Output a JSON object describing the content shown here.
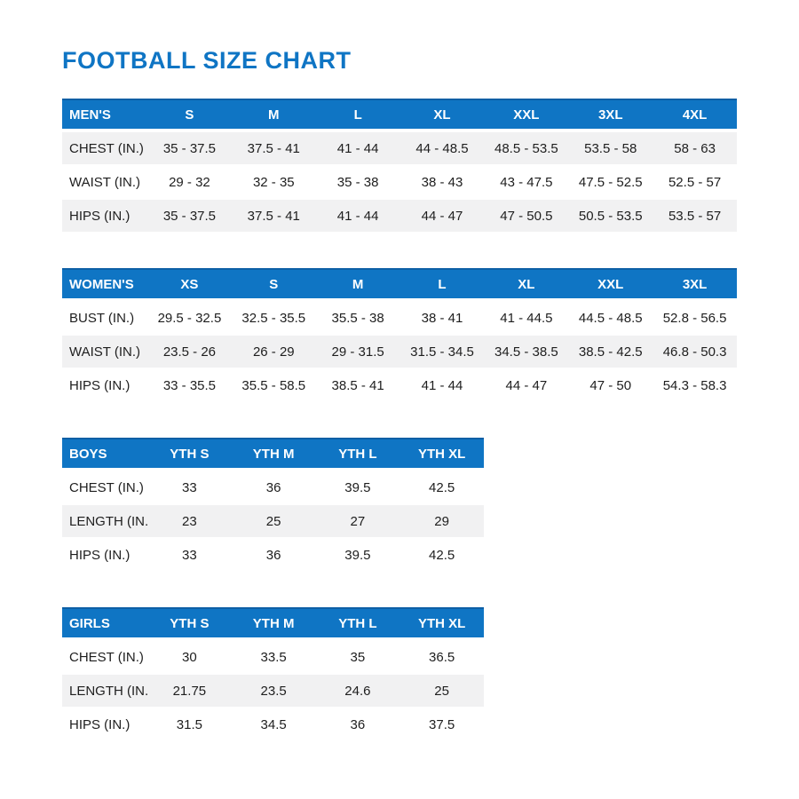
{
  "page": {
    "title": "FOOTBALL SIZE CHART"
  },
  "colors": {
    "accent": "#0F75C4",
    "accent_top_border": "#0D5FA5",
    "row_shade": "#F1F1F2",
    "text": "#1E1E1E",
    "header_text": "#FFFFFF"
  },
  "chart_data": [
    {
      "type": "table",
      "title": "MEN'S",
      "columns": [
        "S",
        "M",
        "L",
        "XL",
        "XXL",
        "3XL",
        "4XL"
      ],
      "rows": [
        {
          "label": "CHEST (IN.)",
          "values": [
            "35 - 37.5",
            "37.5 - 41",
            "41 - 44",
            "44 - 48.5",
            "48.5 - 53.5",
            "53.5 - 58",
            "58 - 63"
          ],
          "shaded": true
        },
        {
          "label": "WAIST (IN.)",
          "values": [
            "29 - 32",
            "32 - 35",
            "35 - 38",
            "38 - 43",
            "43 - 47.5",
            "47.5 - 52.5",
            "52.5 - 57"
          ],
          "shaded": false
        },
        {
          "label": "HIPS (IN.)",
          "values": [
            "35 - 37.5",
            "37.5 - 41",
            "41 - 44",
            "44 - 47",
            "47 - 50.5",
            "50.5 - 53.5",
            "53.5 - 57"
          ],
          "shaded": true
        }
      ]
    },
    {
      "type": "table",
      "title": "WOMEN'S",
      "columns": [
        "XS",
        "S",
        "M",
        "L",
        "XL",
        "XXL",
        "3XL"
      ],
      "rows": [
        {
          "label": "BUST (IN.)",
          "values": [
            "29.5 - 32.5",
            "32.5 - 35.5",
            "35.5 - 38",
            "38 - 41",
            "41 - 44.5",
            "44.5 - 48.5",
            "52.8 - 56.5"
          ],
          "shaded": false
        },
        {
          "label": "WAIST (IN.)",
          "values": [
            "23.5 - 26",
            "26 - 29",
            "29 - 31.5",
            "31.5 - 34.5",
            "34.5 - 38.5",
            "38.5 - 42.5",
            "46.8 - 50.3"
          ],
          "shaded": true
        },
        {
          "label": "HIPS (IN.)",
          "values": [
            "33 - 35.5",
            "35.5 - 58.5",
            "38.5 - 41",
            "41 - 44",
            "44 - 47",
            "47 - 50",
            "54.3 - 58.3"
          ],
          "shaded": false
        }
      ]
    },
    {
      "type": "table",
      "title": "BOYS",
      "columns": [
        "YTH S",
        "YTH M",
        "YTH L",
        "YTH XL"
      ],
      "rows": [
        {
          "label": "CHEST (IN.)",
          "values": [
            "33",
            "36",
            "39.5",
            "42.5"
          ],
          "shaded": false
        },
        {
          "label": "LENGTH (IN.)",
          "values": [
            "23",
            "25",
            "27",
            "29"
          ],
          "shaded": true
        },
        {
          "label": "HIPS (IN.)",
          "values": [
            "33",
            "36",
            "39.5",
            "42.5"
          ],
          "shaded": false
        }
      ]
    },
    {
      "type": "table",
      "title": "GIRLS",
      "columns": [
        "YTH S",
        "YTH M",
        "YTH L",
        "YTH XL"
      ],
      "rows": [
        {
          "label": "CHEST (IN.)",
          "values": [
            "30",
            "33.5",
            "35",
            "36.5"
          ],
          "shaded": false
        },
        {
          "label": "LENGTH (IN.)",
          "values": [
            "21.75",
            "23.5",
            "24.6",
            "25"
          ],
          "shaded": true
        },
        {
          "label": "HIPS (IN.)",
          "values": [
            "31.5",
            "34.5",
            "36",
            "37.5"
          ],
          "shaded": false
        }
      ]
    }
  ]
}
